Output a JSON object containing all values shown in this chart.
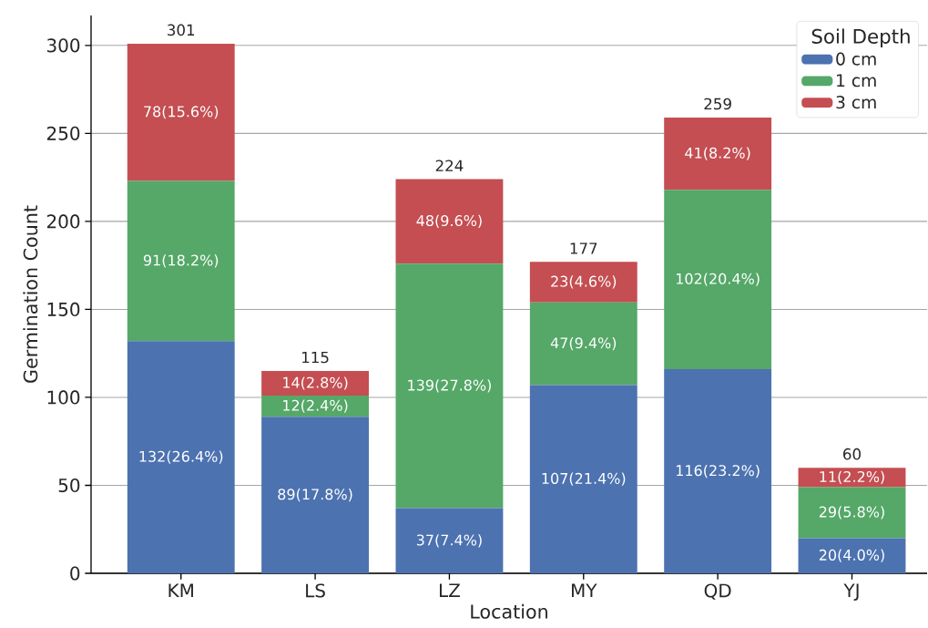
{
  "chart_data": {
    "type": "bar",
    "stacked": true,
    "xlabel": "Location",
    "ylabel": "Germination Count",
    "legend_title": "Soil Depth",
    "categories": [
      "KM",
      "LS",
      "LZ",
      "MY",
      "QD",
      "YJ"
    ],
    "series": [
      {
        "name": "0 cm",
        "color": "#4c72b0",
        "values": [
          132,
          89,
          37,
          107,
          116,
          20
        ],
        "value_labels": [
          "132(26.4%)",
          "89(17.8%)",
          "37(7.4%)",
          "107(21.4%)",
          "116(23.2%)",
          "20(4.0%)"
        ]
      },
      {
        "name": "1 cm",
        "color": "#55a868",
        "values": [
          91,
          12,
          139,
          47,
          102,
          29
        ],
        "value_labels": [
          "91(18.2%)",
          "12(2.4%)",
          "139(27.8%)",
          "47(9.4%)",
          "102(20.4%)",
          "29(5.8%)"
        ]
      },
      {
        "name": "3 cm",
        "color": "#c44e52",
        "values": [
          78,
          14,
          48,
          23,
          41,
          11
        ],
        "value_labels": [
          "78(15.6%)",
          "14(2.8%)",
          "48(9.6%)",
          "23(4.6%)",
          "41(8.2%)",
          "11(2.2%)"
        ]
      }
    ],
    "totals": [
      "301",
      "115",
      "224",
      "177",
      "259",
      "60"
    ],
    "ylim": [
      0,
      317
    ],
    "yticks": [
      0,
      50,
      100,
      150,
      200,
      250,
      300
    ],
    "grid": "y",
    "legend": "top right"
  }
}
